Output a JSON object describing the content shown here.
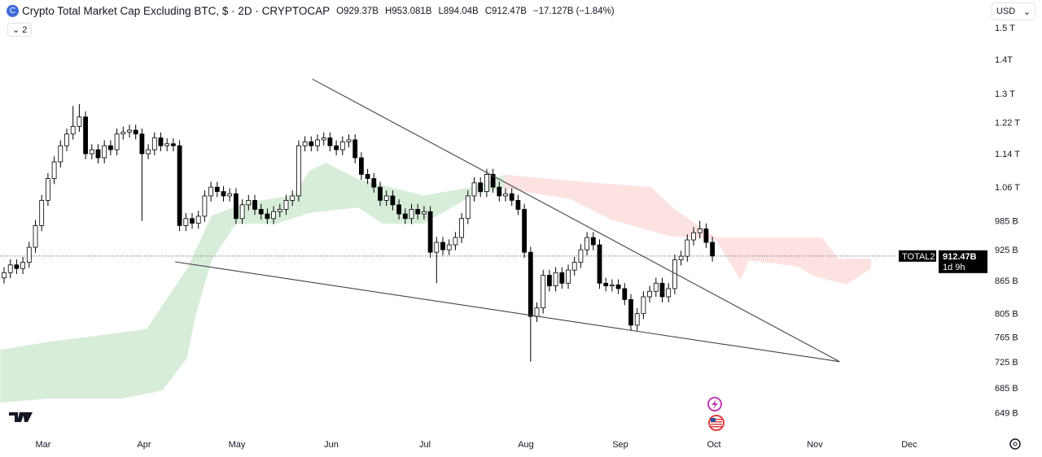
{
  "header": {
    "title": "Crypto Total Market Cap Excluding BTC, $ · 2D · CRYPTOCAP",
    "open": "O929.37B",
    "high": "H953.081B",
    "low": "L894.04B",
    "close": "C912.47B",
    "change": "−17.127B (−1.84%)",
    "legend_toggle": "2",
    "icon": "cryptocap-logo"
  },
  "currency_select": "USD",
  "price_label": {
    "symbol": "TOTAL2",
    "price": "912.47B",
    "countdown": "1d 9h"
  },
  "chart_data": {
    "type": "candlestick",
    "scale": "log",
    "grid": false,
    "ylim": [
      640,
      1520
    ],
    "y_ticks": [
      {
        "v": 1500,
        "l": "1.5 T"
      },
      {
        "v": 1400,
        "l": "1.4T"
      },
      {
        "v": 1300,
        "l": "1.3 T"
      },
      {
        "v": 1220,
        "l": "1.22 T"
      },
      {
        "v": 1140,
        "l": "1.14 T"
      },
      {
        "v": 1060,
        "l": "1.06 T"
      },
      {
        "v": 985,
        "l": "985 B"
      },
      {
        "v": 925,
        "l": "925 B"
      },
      {
        "v": 865,
        "l": "865 B"
      },
      {
        "v": 805,
        "l": "805 B"
      },
      {
        "v": 765,
        "l": "765 B"
      },
      {
        "v": 725,
        "l": "725 B"
      },
      {
        "v": 685,
        "l": "685 B"
      },
      {
        "v": 649,
        "l": "649 B"
      }
    ],
    "x_ticks": [
      "Mar",
      "Apr",
      "May",
      "Jun",
      "Jul",
      "Aug",
      "Sep",
      "Oct",
      "Nov",
      "Dec"
    ],
    "first_open": 870,
    "closes": [
      880,
      895,
      888,
      900,
      930,
      975,
      1030,
      1080,
      1120,
      1160,
      1190,
      1210,
      1235,
      1140,
      1150,
      1130,
      1160,
      1150,
      1190,
      1195,
      1200,
      1190,
      1140,
      1150,
      1180,
      1160,
      1165,
      1160,
      975,
      990,
      980,
      995,
      1040,
      1060,
      1050,
      1040,
      1045,
      990,
      1020,
      1030,
      1010,
      1000,
      990,
      1005,
      1010,
      1030,
      1040,
      1160,
      1170,
      1160,
      1175,
      1180,
      1160,
      1150,
      1170,
      1175,
      1130,
      1090,
      1080,
      1060,
      1030,
      1040,
      1020,
      1000,
      990,
      1010,
      1000,
      1005,
      920,
      940,
      925,
      935,
      950,
      990,
      1040,
      1070,
      1050,
      1090,
      1060,
      1040,
      1045,
      1030,
      1010,
      920,
      800,
      815,
      875,
      855,
      880,
      860,
      885,
      900,
      925,
      950,
      935,
      860,
      855,
      857,
      850,
      830,
      785,
      805,
      835,
      845,
      860,
      835,
      850,
      905,
      912,
      945,
      960,
      968,
      940,
      912.47
    ],
    "wick_overrides": [
      {
        "i": 11,
        "h": 1265
      },
      {
        "i": 12,
        "h": 1270
      },
      {
        "i": 22,
        "l": 985
      },
      {
        "i": 84,
        "l": 725
      },
      {
        "i": 69,
        "l": 860
      },
      {
        "i": 100,
        "l": 775
      },
      {
        "i": 111,
        "h": 985
      }
    ],
    "trendlines": [
      {
        "from": [
          49.2,
          1341
        ],
        "to": [
          133.3,
          725
        ]
      },
      {
        "from": [
          27.3,
          901
        ],
        "to": [
          133.3,
          725
        ]
      }
    ],
    "last_price": 912.47,
    "cloud": {
      "bull_upper": [
        [
          -0.6,
          744
        ],
        [
          7.1,
          757
        ],
        [
          22.7,
          778
        ],
        [
          29.2,
          888
        ],
        [
          33.1,
          996
        ],
        [
          38.3,
          1024
        ],
        [
          46.1,
          1041
        ],
        [
          48.7,
          1098
        ],
        [
          51.3,
          1118
        ],
        [
          56.5,
          1079
        ],
        [
          66.9,
          1041
        ],
        [
          74.7,
          1060
        ],
        [
          77.3,
          1075
        ],
        [
          79.9,
          1089
        ]
      ],
      "bull_lower": [
        [
          79.9,
          1057
        ],
        [
          74.7,
          1041
        ],
        [
          66.9,
          979
        ],
        [
          60.4,
          979
        ],
        [
          56.5,
          1014
        ],
        [
          48.7,
          1002
        ],
        [
          43.5,
          979
        ],
        [
          37,
          979
        ],
        [
          33.1,
          904
        ],
        [
          30.5,
          799
        ],
        [
          29.2,
          731
        ],
        [
          25.3,
          681
        ],
        [
          18.8,
          669
        ],
        [
          7.1,
          669
        ],
        [
          -0.6,
          663
        ]
      ],
      "bear_upper": [
        [
          79.9,
          1089
        ],
        [
          90.3,
          1075
        ],
        [
          103.2,
          1060
        ],
        [
          107.1,
          1009
        ],
        [
          113.6,
          950
        ],
        [
          130.5,
          950
        ],
        [
          133.1,
          907
        ],
        [
          138.3,
          907
        ]
      ],
      "bear_lower": [
        [
          138.3,
          888
        ],
        [
          134.4,
          858
        ],
        [
          129.2,
          873
        ],
        [
          126.6,
          892
        ],
        [
          118.8,
          904
        ],
        [
          117.5,
          865
        ],
        [
          113.6,
          945
        ],
        [
          105.8,
          954
        ],
        [
          96.8,
          988
        ],
        [
          90.3,
          1033
        ],
        [
          79.9,
          1057
        ]
      ],
      "bull_color": "#c8e6c9",
      "bear_color": "#fcd5d5"
    },
    "colors": {
      "up_fill": "#ffffff",
      "down_fill": "#000000",
      "stroke": "#000000"
    }
  },
  "icons": [
    "lightning-icon",
    "us-flag-icon",
    "tradingview-logo",
    "settings-icon"
  ]
}
